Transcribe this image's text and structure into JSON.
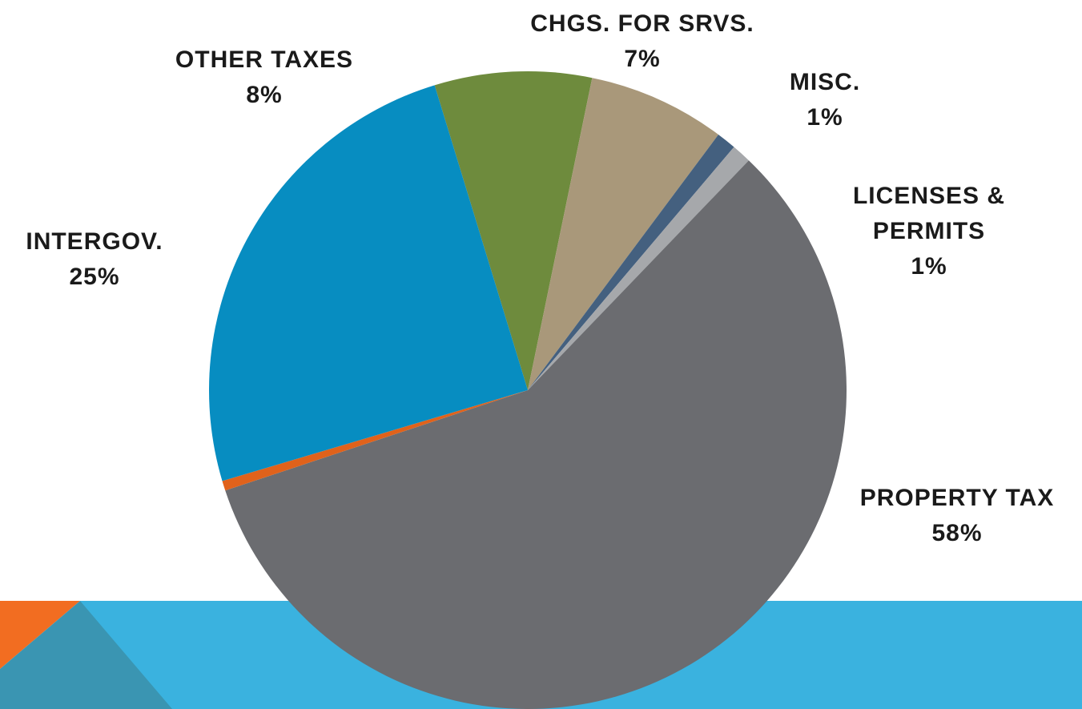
{
  "chart_data": {
    "type": "pie",
    "categories": [
      "OTHER TAXES",
      "CHGS. FOR SRVS.",
      "MISC.",
      "LICENSES & PERMITS",
      "PROPERTY TAX",
      null,
      "INTERGOV."
    ],
    "values": [
      8,
      7,
      1,
      1,
      58,
      0.5,
      25
    ],
    "value_labels": [
      "8%",
      "7%",
      "1%",
      "1%",
      "58%",
      null,
      "25%"
    ],
    "colors": [
      "#6e8b3d",
      "#a9987a",
      "#44607f",
      "#a6a8ab",
      "#6b6c70",
      "#e0621b",
      "#078dc1"
    ]
  }
}
